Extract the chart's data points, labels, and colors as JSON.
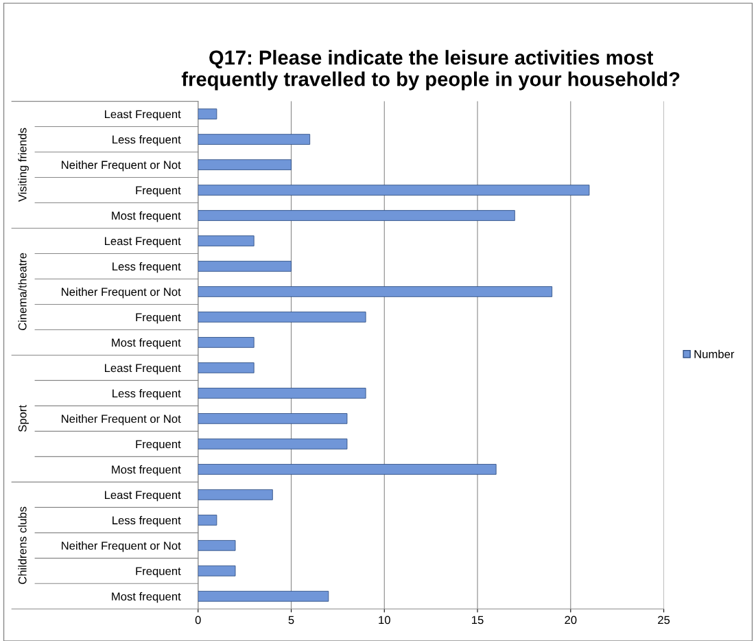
{
  "chart_data": {
    "type": "bar",
    "orientation": "horizontal",
    "title": "Q17: Please indicate the leisure activities most\nfrequently travelled to by people in your household?",
    "categories": [
      "Least Frequent",
      "Less frequent",
      "Neither Frequent or Not",
      "Frequent",
      "Most frequent",
      "Least Frequent",
      "Less frequent",
      "Neither Frequent or Not",
      "Frequent",
      "Most frequent",
      "Least Frequent",
      "Less frequent",
      "Neither Frequent or Not",
      "Frequent",
      "Most frequent",
      "Least Frequent",
      "Less frequent",
      "Neither Frequent or Not",
      "Frequent",
      "Most frequent"
    ],
    "series": [
      {
        "name": "Number",
        "color": "#7096d8",
        "values": [
          1,
          6,
          5,
          21,
          17,
          3,
          5,
          19,
          9,
          3,
          3,
          9,
          8,
          8,
          16,
          4,
          1,
          2,
          2,
          7
        ]
      }
    ],
    "annotations": [
      "Visiting friends",
      "Cinema/theatre",
      "Sport",
      "Childrens clubs"
    ],
    "xlim": [
      0,
      25
    ],
    "xticks": [
      0,
      5,
      10,
      15,
      20,
      25
    ],
    "grid": "x",
    "legend": "right"
  }
}
